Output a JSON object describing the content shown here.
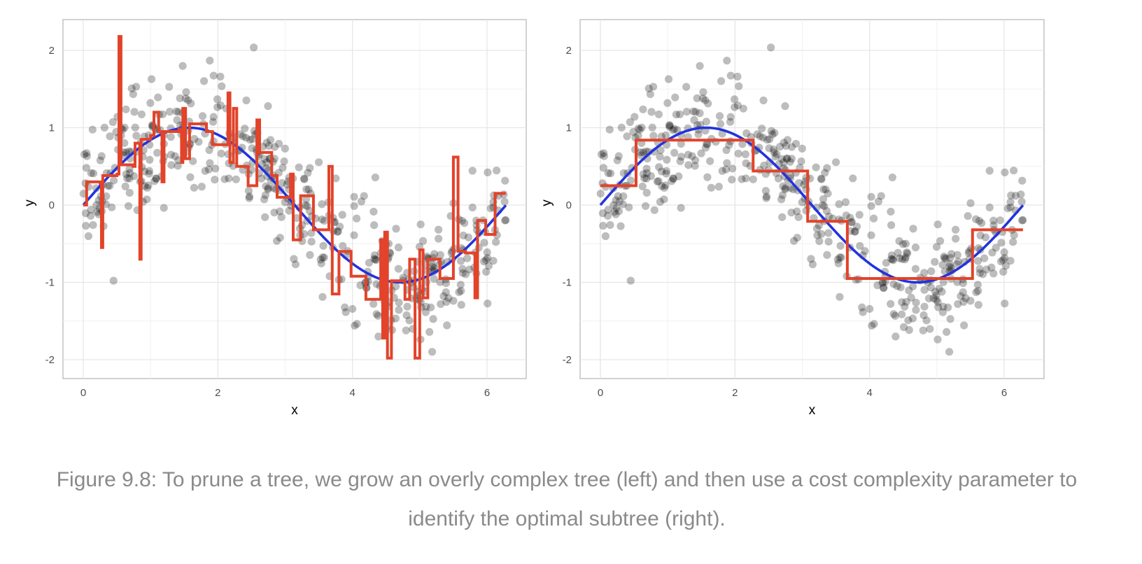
{
  "caption": "Figure 9.8: To prune a tree, we grow an overly complex tree (left) and then use a cost complexity parameter to identify the optimal subtree (right).",
  "colors": {
    "points": "#000000",
    "truth": "#2233dd",
    "tree": "#e2432a",
    "grid": "#e6e6e6",
    "panel_border": "#b3b3b3",
    "axis_text": "#4d4d4d"
  },
  "chart_data": [
    {
      "type": "scatter",
      "panel": "left",
      "xlabel": "x",
      "ylabel": "y",
      "xlim": [
        -0.3,
        6.6
      ],
      "ylim": [
        -2.2,
        2.4
      ],
      "x_ticks": [
        "0",
        "2",
        "4",
        "6"
      ],
      "y_ticks": [
        "-2",
        "-1",
        "0",
        "1",
        "2"
      ],
      "series": [
        {
          "role": "points",
          "x_range": [
            0,
            6.28
          ],
          "n": 500,
          "y": "sin(x) + noise"
        },
        {
          "role": "truth",
          "y": "sin(x)"
        },
        {
          "role": "tree",
          "steps": [
            [
              0.0,
              0.0
            ],
            [
              0.05,
              0.3
            ],
            [
              0.25,
              0.28
            ],
            [
              0.27,
              -0.55
            ],
            [
              0.29,
              0.38
            ],
            [
              0.5,
              0.4
            ],
            [
              0.53,
              2.18
            ],
            [
              0.56,
              0.52
            ],
            [
              0.74,
              0.5
            ],
            [
              0.77,
              0.8
            ],
            [
              0.84,
              -0.7
            ],
            [
              0.86,
              0.85
            ],
            [
              1.0,
              0.9
            ],
            [
              1.05,
              1.2
            ],
            [
              1.12,
              0.95
            ],
            [
              1.17,
              0.3
            ],
            [
              1.2,
              0.95
            ],
            [
              1.42,
              0.98
            ],
            [
              1.46,
              0.55
            ],
            [
              1.48,
              1.25
            ],
            [
              1.52,
              0.6
            ],
            [
              1.58,
              1.05
            ],
            [
              1.83,
              0.95
            ],
            [
              1.92,
              0.78
            ],
            [
              2.12,
              0.78
            ],
            [
              2.15,
              1.45
            ],
            [
              2.18,
              0.55
            ],
            [
              2.23,
              1.25
            ],
            [
              2.28,
              0.5
            ],
            [
              2.45,
              0.25
            ],
            [
              2.58,
              1.1
            ],
            [
              2.62,
              0.68
            ],
            [
              2.8,
              0.38
            ],
            [
              2.88,
              0.1
            ],
            [
              3.08,
              0.4
            ],
            [
              3.12,
              -0.45
            ],
            [
              3.23,
              0.12
            ],
            [
              3.42,
              -0.32
            ],
            [
              3.65,
              0.5
            ],
            [
              3.7,
              -1.15
            ],
            [
              3.8,
              -0.6
            ],
            [
              3.98,
              -0.92
            ],
            [
              4.2,
              -1.22
            ],
            [
              4.42,
              -0.45
            ],
            [
              4.45,
              -1.72
            ],
            [
              4.48,
              -0.35
            ],
            [
              4.52,
              -1.98
            ],
            [
              4.58,
              -0.98
            ],
            [
              4.78,
              -1.22
            ],
            [
              4.85,
              -0.7
            ],
            [
              4.93,
              -1.98
            ],
            [
              5.0,
              -0.58
            ],
            [
              5.05,
              -1.2
            ],
            [
              5.12,
              -0.7
            ],
            [
              5.3,
              -0.95
            ],
            [
              5.5,
              0.62
            ],
            [
              5.57,
              -0.6
            ],
            [
              5.68,
              -0.62
            ],
            [
              5.82,
              -1.2
            ],
            [
              5.86,
              -0.2
            ],
            [
              5.98,
              -0.38
            ],
            [
              6.12,
              0.15
            ],
            [
              6.28,
              0.15
            ]
          ]
        }
      ]
    },
    {
      "type": "scatter",
      "panel": "right",
      "xlabel": "x",
      "ylabel": "y",
      "xlim": [
        -0.3,
        6.6
      ],
      "ylim": [
        -2.2,
        2.4
      ],
      "x_ticks": [
        "0",
        "2",
        "4",
        "6"
      ],
      "y_ticks": [
        "-2",
        "-1",
        "0",
        "1",
        "2"
      ],
      "series": [
        {
          "role": "points",
          "x_range": [
            0,
            6.28
          ],
          "n": 500,
          "y": "sin(x) + noise"
        },
        {
          "role": "truth",
          "y": "sin(x)"
        },
        {
          "role": "tree",
          "steps": [
            [
              0.0,
              0.25
            ],
            [
              0.53,
              0.84
            ],
            [
              2.27,
              0.44
            ],
            [
              3.08,
              -0.21
            ],
            [
              3.67,
              -0.95
            ],
            [
              5.53,
              -0.32
            ],
            [
              6.28,
              -0.32
            ]
          ]
        }
      ]
    }
  ]
}
